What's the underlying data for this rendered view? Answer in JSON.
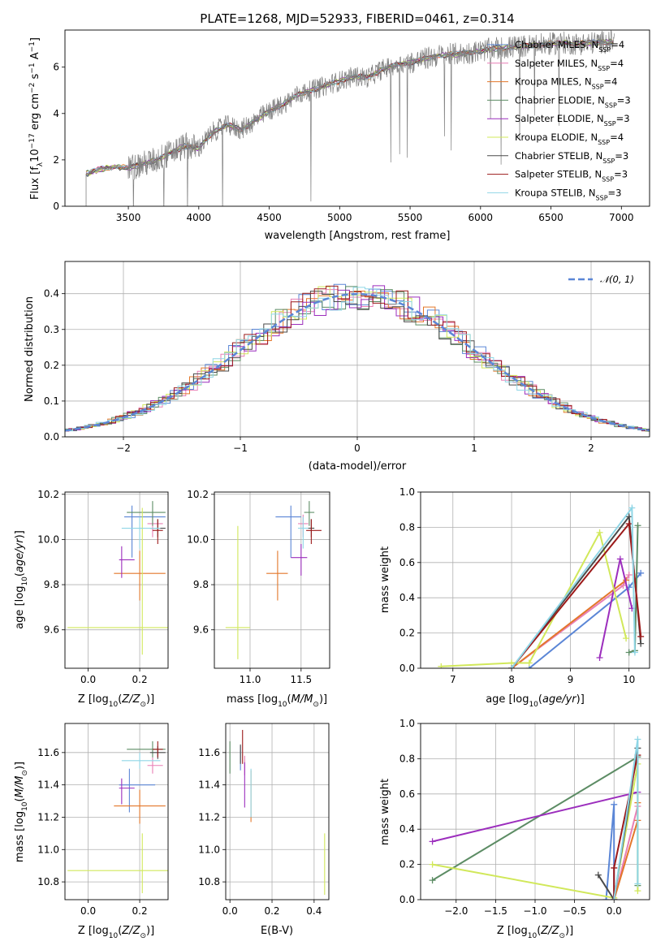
{
  "title": "PLATE=1268, MJD=52933, FIBERID=0461, z=0.314",
  "colors": {
    "Chabrier MILES": "#5b86d6",
    "Salpeter MILES": "#e87fb5",
    "Kroupa MILES": "#e3772a",
    "Chabrier ELODIE": "#5c8c64",
    "Salpeter ELODIE": "#9c2ebd",
    "Kroupa ELODIE": "#d1e85a",
    "Chabrier STELIB": "#4a4a4a",
    "Salpeter STELIB": "#9c1a1a",
    "Kroupa STELIB": "#8fd6e6",
    "data": "#808080",
    "gauss": "#5b86d6"
  },
  "chart_data": [
    {
      "id": "spectrum",
      "type": "line",
      "title": "PLATE=1268, MJD=52933, FIBERID=0461, z=0.314",
      "xlabel": "wavelength [Angstrom, rest frame]",
      "ylabel": "Flux [f$_\\lambda$10$^{-17}$ erg cm$^{-2}$ s$^{-1}$ A$^{-1}$]",
      "ylabel_parts": [
        "Flux [f",
        "λ",
        "10",
        "−17",
        " erg cm",
        "−2",
        " s",
        "−1",
        " A",
        "−1",
        "]"
      ],
      "xlim": [
        3050,
        7200
      ],
      "ylim": [
        0,
        7.6
      ],
      "xticks": [
        3500,
        4000,
        4500,
        5000,
        5500,
        6000,
        6500,
        7000
      ],
      "yticks": [
        0,
        2,
        4,
        6
      ],
      "legend_position": "top-right",
      "legend": [
        {
          "model": "Chabrier MILES",
          "nssp": "4"
        },
        {
          "model": "Salpeter MILES",
          "nssp": "4"
        },
        {
          "model": "Kroupa MILES",
          "nssp": "4"
        },
        {
          "model": "Chabrier ELODIE",
          "nssp": "3"
        },
        {
          "model": "Salpeter ELODIE",
          "nssp": "3"
        },
        {
          "model": "Kroupa ELODIE",
          "nssp": "4"
        },
        {
          "model": "Chabrier STELIB",
          "nssp": "3"
        },
        {
          "model": "Salpeter STELIB",
          "nssp": "3"
        },
        {
          "model": "Kroupa STELIB",
          "nssp": "3"
        }
      ],
      "legend_label_prefix": ", N",
      "legend_label_sub": "SSP",
      "continuum": [
        [
          3200,
          1.4
        ],
        [
          3300,
          1.6
        ],
        [
          3400,
          1.7
        ],
        [
          3500,
          1.65
        ],
        [
          3600,
          1.8
        ],
        [
          3700,
          2.0
        ],
        [
          3800,
          2.3
        ],
        [
          3900,
          2.6
        ],
        [
          4000,
          2.5
        ],
        [
          4100,
          3.2
        ],
        [
          4200,
          3.5
        ],
        [
          4300,
          3.3
        ],
        [
          4400,
          3.7
        ],
        [
          4500,
          4.1
        ],
        [
          4600,
          4.4
        ],
        [
          4700,
          4.8
        ],
        [
          4800,
          5.0
        ],
        [
          4900,
          5.2
        ],
        [
          5000,
          5.4
        ],
        [
          5100,
          5.6
        ],
        [
          5200,
          5.55
        ],
        [
          5300,
          5.9
        ],
        [
          5400,
          6.1
        ],
        [
          5500,
          6.2
        ],
        [
          5600,
          6.35
        ],
        [
          5700,
          6.5
        ],
        [
          5800,
          6.55
        ],
        [
          5900,
          6.6
        ],
        [
          6000,
          6.7
        ],
        [
          6100,
          6.8
        ],
        [
          6200,
          6.85
        ],
        [
          6300,
          6.9
        ],
        [
          6400,
          6.95
        ],
        [
          6500,
          7.0
        ],
        [
          6600,
          7.05
        ],
        [
          6700,
          7.0
        ],
        [
          6800,
          7.05
        ],
        [
          6900,
          7.1
        ]
      ]
    },
    {
      "id": "residuals",
      "type": "histogram",
      "xlabel": "(data-model)/error",
      "ylabel": "Normed distribution",
      "xlim": [
        -2.5,
        2.5
      ],
      "ylim": [
        0,
        0.49
      ],
      "xticks": [
        -2,
        -1,
        0,
        1,
        2
      ],
      "yticks": [
        0.0,
        0.1,
        0.2,
        0.3,
        0.4
      ],
      "grid": true,
      "legend_position": "top-right",
      "legend": "$\\mathcal{N}(0,1)$",
      "legend_text": "𝒩(0, 1)",
      "gaussian": {
        "mu": 0,
        "sigma": 1
      }
    },
    {
      "id": "age-vs-Z",
      "type": "errorbar",
      "xlabel": "Z [log$_{10}$(Z/Z$_\\odot$)]",
      "ylabel": "age  [log$_{10}$(age/yr)]",
      "xlim": [
        -0.09,
        0.31
      ],
      "ylim": [
        9.43,
        10.21
      ],
      "xticks": [
        0.0,
        0.2
      ],
      "yticks": [
        9.6,
        9.8,
        10.0,
        10.2
      ],
      "grid": true,
      "points": [
        {
          "model": "Chabrier MILES",
          "x": 0.17,
          "xerr": [
            0.03,
            0.13
          ],
          "y": 10.1,
          "yerr": [
            0.18,
            0.05
          ]
        },
        {
          "model": "Salpeter MILES",
          "x": 0.25,
          "xerr": [
            0.02,
            0.04
          ],
          "y": 10.07,
          "yerr": [
            0.06,
            0.04
          ]
        },
        {
          "model": "Kroupa MILES",
          "x": 0.2,
          "xerr": [
            0.1,
            0.1
          ],
          "y": 9.85,
          "yerr": [
            0.12,
            0.1
          ]
        },
        {
          "model": "Chabrier ELODIE",
          "x": 0.25,
          "xerr": [
            0.1,
            0.05
          ],
          "y": 10.12,
          "yerr": [
            0.06,
            0.05
          ]
        },
        {
          "model": "Salpeter ELODIE",
          "x": 0.13,
          "xerr": [
            0.01,
            0.05
          ],
          "y": 9.91,
          "yerr": [
            0.08,
            0.06
          ]
        },
        {
          "model": "Kroupa ELODIE",
          "x": 0.21,
          "xerr": [
            0.29,
            0.11
          ],
          "y": 9.61,
          "yerr": [
            0.12,
            0.53
          ]
        },
        {
          "model": "Chabrier STELIB",
          "x": 0.27,
          "xerr": [
            0.03,
            0.03
          ],
          "y": 10.05,
          "yerr": [
            0.04,
            0.04
          ]
        },
        {
          "model": "Salpeter STELIB",
          "x": 0.27,
          "xerr": [
            0.02,
            0.02
          ],
          "y": 10.04,
          "yerr": [
            0.06,
            0.05
          ]
        },
        {
          "model": "Kroupa STELIB",
          "x": 0.2,
          "xerr": [
            0.07,
            0.08
          ],
          "y": 10.05,
          "yerr": [
            0.09,
            0.05
          ]
        }
      ]
    },
    {
      "id": "age-vs-mass",
      "type": "errorbar",
      "xlabel": "mass [log$_{10}$(M/M$_\\odot$)]",
      "ylabel": "",
      "xlim": [
        10.65,
        11.78
      ],
      "ylim": [
        9.43,
        10.21
      ],
      "xticks": [
        11.0,
        11.5
      ],
      "yticks": [
        9.6,
        9.8,
        10.0,
        10.2
      ],
      "grid": true,
      "points": [
        {
          "model": "Chabrier MILES",
          "x": 11.4,
          "xerr": [
            0.15,
            0.1
          ],
          "y": 10.1,
          "yerr": [
            0.18,
            0.05
          ]
        },
        {
          "model": "Salpeter MILES",
          "x": 11.52,
          "xerr": [
            0.05,
            0.05
          ],
          "y": 10.07,
          "yerr": [
            0.06,
            0.04
          ]
        },
        {
          "model": "Kroupa MILES",
          "x": 11.27,
          "xerr": [
            0.11,
            0.1
          ],
          "y": 9.85,
          "yerr": [
            0.12,
            0.1
          ]
        },
        {
          "model": "Chabrier ELODIE",
          "x": 11.58,
          "xerr": [
            0.05,
            0.05
          ],
          "y": 10.12,
          "yerr": [
            0.06,
            0.05
          ]
        },
        {
          "model": "Salpeter ELODIE",
          "x": 11.5,
          "xerr": [
            0.1,
            0.06
          ],
          "y": 9.92,
          "yerr": [
            0.08,
            0.06
          ]
        },
        {
          "model": "Kroupa ELODIE",
          "x": 10.88,
          "xerr": [
            0.12,
            0.12
          ],
          "y": 9.61,
          "yerr": [
            0.14,
            0.45
          ]
        },
        {
          "model": "Chabrier STELIB",
          "x": 11.6,
          "xerr": [
            0.03,
            0.03
          ],
          "y": 10.05,
          "yerr": [
            0.04,
            0.04
          ]
        },
        {
          "model": "Salpeter STELIB",
          "x": 11.6,
          "xerr": [
            0.05,
            0.1
          ],
          "y": 10.04,
          "yerr": [
            0.06,
            0.05
          ]
        },
        {
          "model": "Kroupa STELIB",
          "x": 11.52,
          "xerr": [
            0.05,
            0.05
          ],
          "y": 10.05,
          "yerr": [
            0.09,
            0.05
          ]
        }
      ]
    },
    {
      "id": "weight-vs-age",
      "type": "line",
      "xlabel": "age  [log$_{10}$(age/yr)]",
      "ylabel": "mass weight",
      "xlim": [
        6.45,
        10.35
      ],
      "ylim": [
        0,
        1.0
      ],
      "xticks": [
        7,
        8,
        9,
        10
      ],
      "yticks": [
        0.0,
        0.2,
        0.4,
        0.6,
        0.8,
        1.0
      ],
      "grid": true,
      "series": [
        {
          "model": "Chabrier MILES",
          "x": [
            8.3,
            10.0,
            10.2
          ],
          "y": [
            0.0,
            0.46,
            0.54
          ]
        },
        {
          "model": "Salpeter MILES",
          "x": [
            8.0,
            9.9,
            10.0
          ],
          "y": [
            0.0,
            0.47,
            0.53
          ]
        },
        {
          "model": "Kroupa MILES",
          "x": [
            8.0,
            9.95
          ],
          "y": [
            0.0,
            0.5
          ]
        },
        {
          "model": "Chabrier ELODIE",
          "x": [
            10.0,
            10.1,
            10.15
          ],
          "y": [
            0.09,
            0.1,
            0.81
          ]
        },
        {
          "model": "Salpeter ELODIE",
          "x": [
            9.5,
            9.85,
            10.05
          ],
          "y": [
            0.06,
            0.62,
            0.34
          ]
        },
        {
          "model": "Kroupa ELODIE",
          "x": [
            6.8,
            8.0,
            8.3,
            9.5,
            9.95
          ],
          "y": [
            0.01,
            0.03,
            0.03,
            0.77,
            0.17
          ]
        },
        {
          "model": "Chabrier STELIB",
          "x": [
            8.0,
            10.0,
            10.2
          ],
          "y": [
            0.0,
            0.86,
            0.14
          ]
        },
        {
          "model": "Salpeter STELIB",
          "x": [
            8.0,
            10.0,
            10.2
          ],
          "y": [
            0.0,
            0.82,
            0.18
          ]
        },
        {
          "model": "Kroupa STELIB",
          "x": [
            8.0,
            10.05,
            10.1
          ],
          "y": [
            0.0,
            0.91,
            0.09
          ]
        }
      ]
    },
    {
      "id": "mass-vs-Z",
      "type": "errorbar",
      "xlabel": "Z [log$_{10}$(Z/Z$_\\odot$)]",
      "ylabel": "mass [log$_{10}$(M/M$_\\odot$)]",
      "xlim": [
        -0.09,
        0.31
      ],
      "ylim": [
        10.69,
        11.78
      ],
      "xticks": [
        0.0,
        0.2
      ],
      "yticks": [
        10.8,
        11.0,
        11.2,
        11.4,
        11.6
      ],
      "grid": true,
      "points": [
        {
          "model": "Chabrier MILES",
          "x": 0.16,
          "xerr": [
            0.04,
            0.1
          ],
          "y": 11.4,
          "yerr": [
            0.17,
            0.1
          ]
        },
        {
          "model": "Salpeter MILES",
          "x": 0.25,
          "xerr": [
            0.02,
            0.04
          ],
          "y": 11.52,
          "yerr": [
            0.05,
            0.05
          ]
        },
        {
          "model": "Kroupa MILES",
          "x": 0.2,
          "xerr": [
            0.1,
            0.1
          ],
          "y": 11.27,
          "yerr": [
            0.11,
            0.1
          ]
        },
        {
          "model": "Chabrier ELODIE",
          "x": 0.25,
          "xerr": [
            0.1,
            0.05
          ],
          "y": 11.62,
          "yerr": [
            0.05,
            0.05
          ]
        },
        {
          "model": "Salpeter ELODIE",
          "x": 0.13,
          "xerr": [
            0.01,
            0.05
          ],
          "y": 11.38,
          "yerr": [
            0.1,
            0.06
          ]
        },
        {
          "model": "Kroupa ELODIE",
          "x": 0.21,
          "xerr": [
            0.29,
            0.11
          ],
          "y": 10.87,
          "yerr": [
            0.14,
            0.23
          ]
        },
        {
          "model": "Chabrier STELIB",
          "x": 0.27,
          "xerr": [
            0.03,
            0.03
          ],
          "y": 11.6,
          "yerr": [
            0.04,
            0.04
          ]
        },
        {
          "model": "Salpeter STELIB",
          "x": 0.27,
          "xerr": [
            0.02,
            0.02
          ],
          "y": 11.62,
          "yerr": [
            0.05,
            0.05
          ]
        },
        {
          "model": "Kroupa STELIB",
          "x": 0.2,
          "xerr": [
            0.07,
            0.08
          ],
          "y": 11.55,
          "yerr": [
            0.05,
            0.05
          ]
        }
      ]
    },
    {
      "id": "mass-vs-ebv",
      "type": "errorbar",
      "xlabel": "E(B-V)",
      "ylabel": "",
      "xlim": [
        -0.02,
        0.47
      ],
      "ylim": [
        10.69,
        11.78
      ],
      "xticks": [
        0.0,
        0.2,
        0.4
      ],
      "yticks": [
        10.8,
        11.0,
        11.2,
        11.4,
        11.6
      ],
      "grid": true,
      "points": [
        {
          "model": "Chabrier MILES",
          "x": 0.05,
          "xerr": [
            0,
            0
          ],
          "y": 11.56,
          "yerr": [
            0.07,
            0.08
          ]
        },
        {
          "model": "Salpeter MILES",
          "x": 0.07,
          "xerr": [
            0,
            0
          ],
          "y": 11.52,
          "yerr": [
            0.06,
            0.06
          ]
        },
        {
          "model": "Kroupa MILES",
          "x": 0.1,
          "xerr": [
            0,
            0
          ],
          "y": 11.27,
          "yerr": [
            0.1,
            0.22
          ]
        },
        {
          "model": "Chabrier ELODIE",
          "x": 0.0,
          "xerr": [
            0,
            0
          ],
          "y": 11.57,
          "yerr": [
            0.1,
            0.1
          ]
        },
        {
          "model": "Salpeter ELODIE",
          "x": 0.07,
          "xerr": [
            0,
            0
          ],
          "y": 11.38,
          "yerr": [
            0.12,
            0.16
          ]
        },
        {
          "model": "Kroupa ELODIE",
          "x": 0.45,
          "xerr": [
            0,
            0
          ],
          "y": 10.9,
          "yerr": [
            0.18,
            0.2
          ]
        },
        {
          "model": "Chabrier STELIB",
          "x": 0.05,
          "xerr": [
            0,
            0
          ],
          "y": 11.58,
          "yerr": [
            0.05,
            0.07
          ]
        },
        {
          "model": "Salpeter STELIB",
          "x": 0.06,
          "xerr": [
            0,
            0
          ],
          "y": 11.62,
          "yerr": [
            0.09,
            0.12
          ]
        },
        {
          "model": "Kroupa STELIB",
          "x": 0.1,
          "xerr": [
            0,
            0
          ],
          "y": 11.35,
          "yerr": [
            0.15,
            0.15
          ]
        }
      ]
    },
    {
      "id": "weight-vs-Z",
      "type": "line",
      "xlabel": "Z [log$_{10}$(Z/Z$_\\odot$)]",
      "ylabel": "mass weight",
      "xlim": [
        -2.45,
        0.45
      ],
      "ylim": [
        0,
        1.0
      ],
      "xticks": [
        -2.0,
        -1.5,
        -1.0,
        -0.5,
        0.0
      ],
      "yticks": [
        0.0,
        0.2,
        0.4,
        0.6,
        0.8,
        1.0
      ],
      "grid": true,
      "series": [
        {
          "model": "Chabrier MILES",
          "x": [
            -0.1,
            0.0,
            0.0
          ],
          "y": [
            0.0,
            0.54,
            0.0
          ]
        },
        {
          "model": "Salpeter MILES",
          "x": [
            0.0,
            0.3
          ],
          "y": [
            0.0,
            0.53
          ]
        },
        {
          "model": "Kroupa MILES",
          "x": [
            0.0,
            0.3,
            0.3
          ],
          "y": [
            0.0,
            0.45,
            0.55
          ]
        },
        {
          "model": "Chabrier ELODIE",
          "x": [
            -2.3,
            0.3,
            0.3
          ],
          "y": [
            0.11,
            0.81,
            0.08
          ]
        },
        {
          "model": "Salpeter ELODIE",
          "x": [
            -2.3,
            0.3
          ],
          "y": [
            0.33,
            0.61
          ]
        },
        {
          "model": "Kroupa ELODIE",
          "x": [
            -2.3,
            0.0,
            0.3,
            0.3
          ],
          "y": [
            0.2,
            0.01,
            0.77,
            0.05
          ]
        },
        {
          "model": "Chabrier STELIB",
          "x": [
            -0.2,
            0.0,
            0.3
          ],
          "y": [
            0.14,
            0.0,
            0.86
          ]
        },
        {
          "model": "Salpeter STELIB",
          "x": [
            0.0,
            0.0,
            0.3
          ],
          "y": [
            0.0,
            0.18,
            0.82
          ]
        },
        {
          "model": "Kroupa STELIB",
          "x": [
            0.0,
            0.3,
            0.3
          ],
          "y": [
            0.0,
            0.91,
            0.09
          ]
        }
      ]
    }
  ]
}
